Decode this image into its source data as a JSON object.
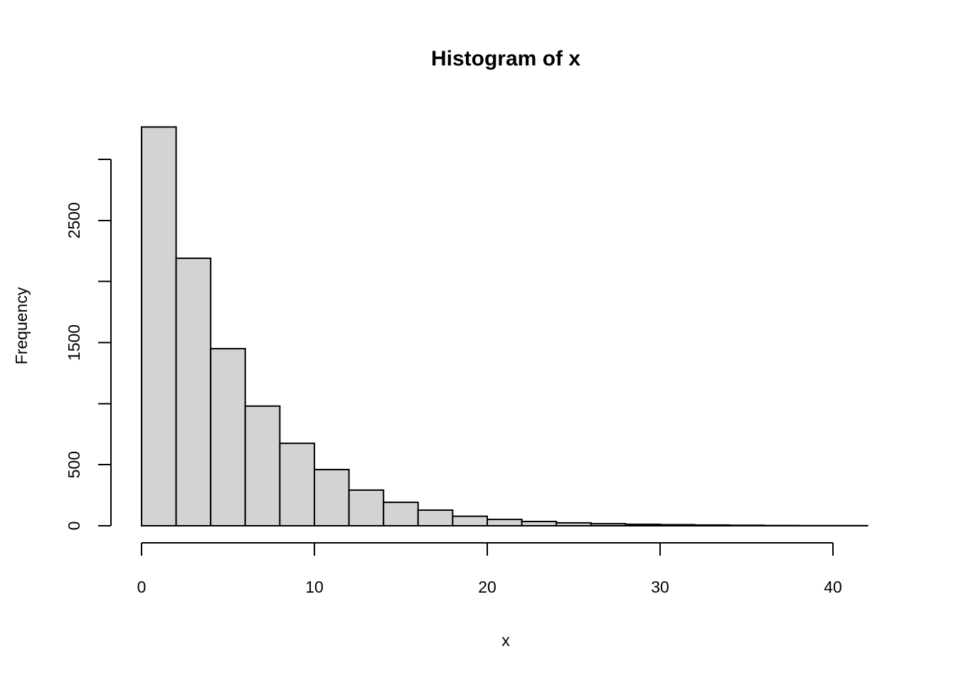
{
  "chart_data": {
    "type": "bar",
    "subtype": "histogram",
    "title": "Histogram of x",
    "xlabel": "x",
    "ylabel": "Frequency",
    "breaks": [
      0,
      2,
      4,
      6,
      8,
      10,
      12,
      14,
      16,
      18,
      20,
      22,
      24,
      26,
      28,
      30,
      32,
      34,
      36,
      38,
      40,
      42
    ],
    "counts": [
      3265,
      2190,
      1450,
      980,
      675,
      460,
      292,
      192,
      128,
      78,
      52,
      35,
      24,
      17,
      12,
      9,
      6,
      4,
      2,
      1,
      1
    ],
    "xlim": [
      0,
      42
    ],
    "ylim": [
      0,
      3000
    ],
    "x_ticks": [
      0,
      10,
      20,
      30,
      40
    ],
    "x_tick_labels": [
      "0",
      "10",
      "20",
      "30",
      "40"
    ],
    "y_ticks": [
      0,
      500,
      1000,
      1500,
      2000,
      2500,
      3000
    ],
    "y_tick_labels": [
      "0",
      "500",
      "",
      "1500",
      "",
      "2500",
      ""
    ],
    "grid": false,
    "legend_position": "none",
    "colors": {
      "bar_fill": "#D3D3D3",
      "bar_border": "#000000",
      "axis": "#000000",
      "text": "#000000",
      "background": "#FFFFFF"
    }
  }
}
